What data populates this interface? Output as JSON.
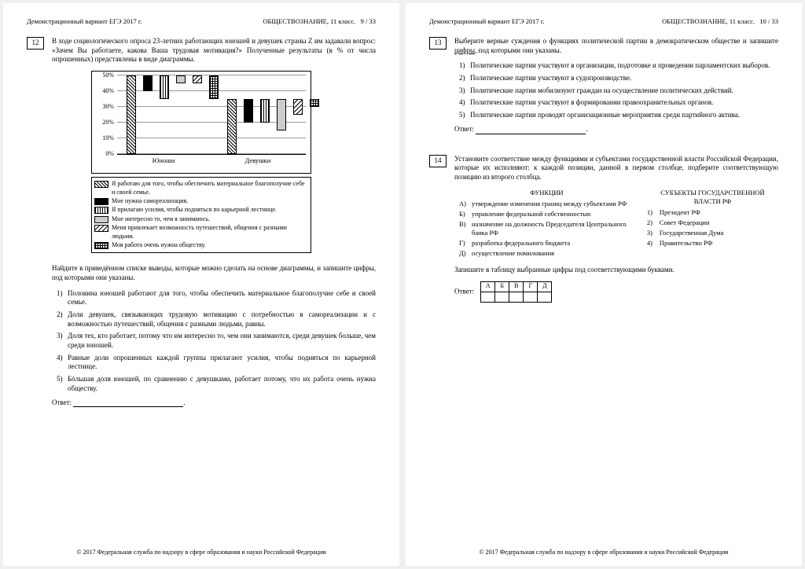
{
  "header": {
    "left": "Демонстрационный вариант ЕГЭ 2017 г.",
    "mid": "ОБЩЕСТВОЗНАНИЕ, 11 класс."
  },
  "page_left": "9 / 33",
  "page_right": "10 / 33",
  "footer": "© 2017 Федеральная служба по надзору в сфере образования и науки Российской Федерации",
  "q12": {
    "num": "12",
    "text": "В ходе социологического опроса 23-летних работающих юношей и девушек страны Z им задавали вопрос: «Зачем Вы работаете, какова Ваша трудовая мотивация?» Полученные результаты (в % от числа опрошенных) представлены в виде диаграммы.",
    "chart": {
      "ylim": [
        0,
        50
      ],
      "ytick_step": 10,
      "groups": [
        "Юноши",
        "Девушки"
      ],
      "series": [
        {
          "label": "Я работаю для того, чтобы обеспечить материальное благополучие себе и своей семье.",
          "pat": "p-diag1",
          "vals": [
            50,
            35
          ]
        },
        {
          "label": "Мне нужна самореализация.",
          "pat": "p-solid",
          "vals": [
            10,
            15
          ]
        },
        {
          "label": "Я прилагаю усилия, чтобы подняться по карьерной лестнице.",
          "pat": "p-vert",
          "vals": [
            15,
            15
          ]
        },
        {
          "label": "Мне интересно то, чем я занимаюсь.",
          "pat": "p-gray",
          "vals": [
            5,
            20
          ]
        },
        {
          "label": "Меня привлекает возможность путешествий, общения с разными людьми.",
          "pat": "p-diag2",
          "vals": [
            5,
            10
          ]
        },
        {
          "label": "Моя работа очень нужна обществу.",
          "pat": "p-grid",
          "vals": [
            15,
            5
          ]
        }
      ]
    },
    "after": "Найдите в приведённом списке выводы, которые можно сделать на основе диаграммы, и запишите цифры, под которыми они указаны.",
    "opts": [
      "Половина юношей работают для того, чтобы обеспечить материальное благополучие себе и своей семье.",
      "Доли девушек, связывающих трудовую мотивацию с потребностью в самореализации и с возможностью путешествий, общения с разными людьми, равны.",
      "Доля тех, кто работает, потому что им интересно то, чем они занимаются, среди девушек больше, чем среди юношей.",
      "Равные доли опрошенных каждой группы прилагают усилия, чтобы подняться по карьерной лестнице.",
      "Бóльшая доля юношей, по сравнению с девушками, работает потому, что их работа очень нужна обществу."
    ],
    "ans": "Ответ:"
  },
  "q13": {
    "num": "13",
    "text_a": "Выберите верные суждения о функциях политической партии в демократическом обществе и запишите ",
    "text_b": "цифры",
    "text_c": ", под которыми они указаны.",
    "opts": [
      "Политические партии участвуют в организации, подготовке и проведении парламентских выборов.",
      "Политические партии участвуют в судопроизводстве.",
      "Политические партии мобилизуют граждан на осуществление политических действий.",
      "Политические партии участвуют в формировании правоохранительных органов.",
      "Политические партии проводят организационные мероприятия среди партийного актива."
    ],
    "ans": "Ответ:"
  },
  "q14": {
    "num": "14",
    "text": "Установите соответствие между функциями и субъектами государственной власти Российской Федерации, которые их исполняют: к каждой позиции, данной в первом столбце, подберите соответствующую позицию из второго столбца.",
    "h1": "ФУНКЦИИ",
    "h2": "СУБЪЕКТЫ ГОСУДАРСТВЕННОЙ ВЛАСТИ РФ",
    "left": [
      {
        "l": "А)",
        "t": "утверждение изменения границ между субъектами РФ"
      },
      {
        "l": "Б)",
        "t": "управление федеральной собственностью"
      },
      {
        "l": "В)",
        "t": "назначение на должность Председателя Центрального банка РФ"
      },
      {
        "l": "Г)",
        "t": "разработка федерального бюджета"
      },
      {
        "l": "Д)",
        "t": "осуществление помилования"
      }
    ],
    "right": [
      {
        "l": "1)",
        "t": "Президент РФ"
      },
      {
        "l": "2)",
        "t": "Совет Федерации"
      },
      {
        "l": "3)",
        "t": "Государственная Дума"
      },
      {
        "l": "4)",
        "t": "Правительство РФ"
      }
    ],
    "after": "Запишите в таблицу выбранные цифры под соответствующими буквами.",
    "thead": [
      "А",
      "Б",
      "В",
      "Г",
      "Д"
    ],
    "ans": "Ответ:"
  }
}
